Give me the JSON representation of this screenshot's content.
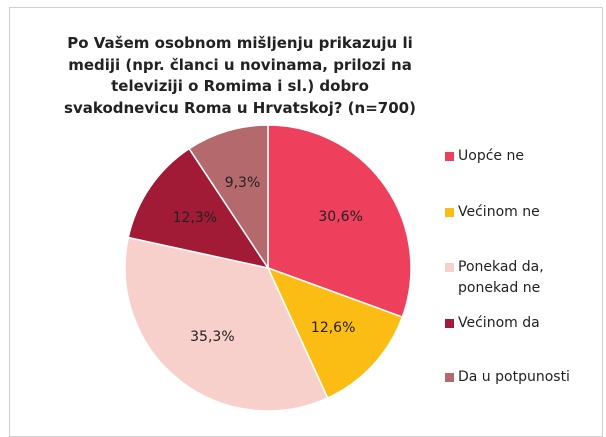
{
  "chart_data": {
    "type": "pie",
    "title": "Po Vašem osobnom mišljenju prikazuju li mediji (npr. članci u novinama, prilozi na televiziji o Romima i sl.) dobro svakodnevicu Roma u Hrvatskoj? (n=700)",
    "categories": [
      "Uopće ne",
      "Većinom ne",
      "Ponekad da, ponekad ne",
      "Većinom da",
      "Da u potpunosti"
    ],
    "values": [
      30.6,
      12.6,
      35.3,
      12.3,
      9.3
    ],
    "value_labels": [
      "30,6%",
      "12,6%",
      "35,3%",
      "12,3%",
      "9,3%"
    ],
    "colors": [
      "#ee3f5d",
      "#fbbd14",
      "#f8d0cb",
      "#a11b37",
      "#b46a6d"
    ],
    "legend": "right"
  }
}
